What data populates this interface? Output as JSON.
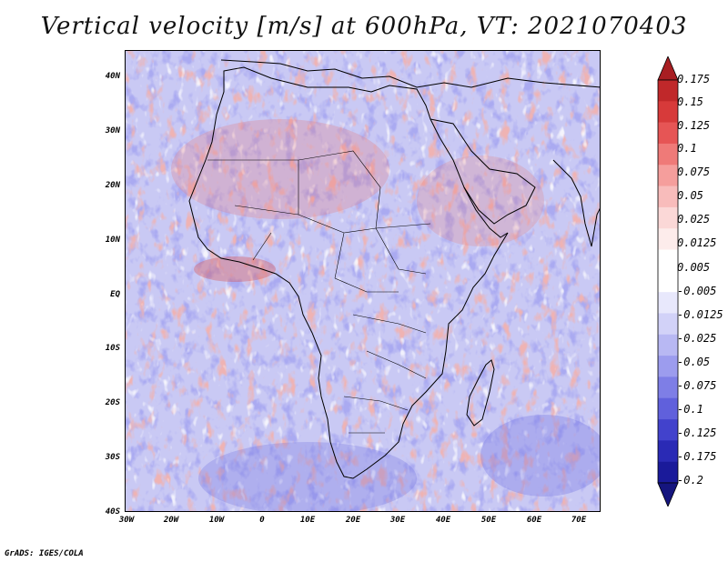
{
  "title": "Vertical velocity [m/s] at 600hPa, VT: 2021070403",
  "footer": "GrADS: IGES/COLA",
  "map": {
    "region": "Africa",
    "field": "Vertical velocity",
    "units": "m/s",
    "level": "600hPa",
    "valid_time": "2021070403",
    "lat_range": [
      -40,
      45
    ],
    "lon_range": [
      -30,
      75
    ],
    "lat_labels": [
      {
        "value": 40,
        "text": "40N"
      },
      {
        "value": 30,
        "text": "30N"
      },
      {
        "value": 20,
        "text": "20N"
      },
      {
        "value": 10,
        "text": "10N"
      },
      {
        "value": 0,
        "text": "EQ"
      },
      {
        "value": -10,
        "text": "10S"
      },
      {
        "value": -20,
        "text": "20S"
      },
      {
        "value": -30,
        "text": "30S"
      },
      {
        "value": -40,
        "text": "40S"
      }
    ],
    "lon_labels": [
      {
        "value": -30,
        "text": "30W"
      },
      {
        "value": -20,
        "text": "20W"
      },
      {
        "value": -10,
        "text": "10W"
      },
      {
        "value": 0,
        "text": "0"
      },
      {
        "value": 10,
        "text": "10E"
      },
      {
        "value": 20,
        "text": "20E"
      },
      {
        "value": 30,
        "text": "30E"
      },
      {
        "value": 40,
        "text": "40E"
      },
      {
        "value": 50,
        "text": "50E"
      },
      {
        "value": 60,
        "text": "60E"
      },
      {
        "value": 70,
        "text": "70E"
      }
    ]
  },
  "colorbar": {
    "labels": [
      "0.175",
      "0.15",
      "0.125",
      "0.1",
      "0.075",
      "0.05",
      "0.025",
      "0.0125",
      "0.005",
      "-0.005",
      "-0.0125",
      "-0.025",
      "-0.05",
      "-0.075",
      "-0.1",
      "-0.125",
      "-0.175",
      "-0.2"
    ],
    "colors": [
      "#c0282a",
      "#d73a3a",
      "#e65555",
      "#ef7a78",
      "#f59e9c",
      "#f8bcbb",
      "#fbd8d7",
      "#fdeceb",
      "#ffffff",
      "#ffffff",
      "#e8e8fc",
      "#d2d2f8",
      "#b8b8f3",
      "#9c9cee",
      "#7e7ee6",
      "#6060dc",
      "#4242cc",
      "#2a2ab5",
      "#1a1a9a"
    ],
    "arrow_top_color": "#a81e22",
    "arrow_bottom_color": "#15157e"
  }
}
